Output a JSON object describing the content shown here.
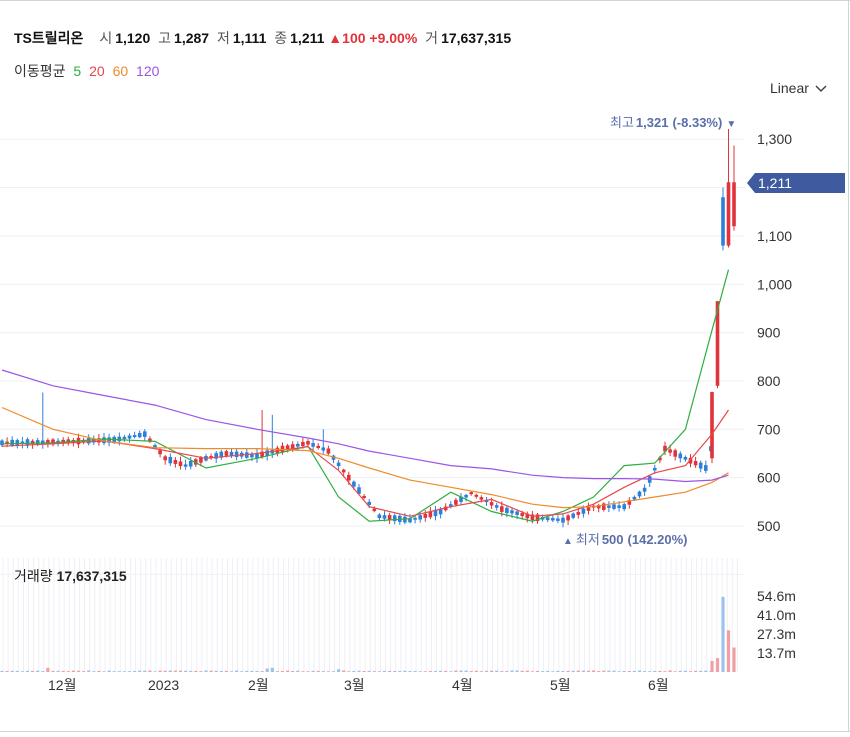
{
  "stock": {
    "name": "TS트릴리온",
    "open_label": "시",
    "open": "1,120",
    "high_label": "고",
    "high": "1,287",
    "low_label": "저",
    "low": "1,111",
    "close_label": "종",
    "close": "1,211",
    "change_arrow": "▲",
    "change": "100",
    "change_pct": "+9.00%",
    "volume_label": "거",
    "volume": "17,637,315"
  },
  "moving_average": {
    "label": "이동평균",
    "periods": [
      {
        "period": "5",
        "color": "#2fae3e"
      },
      {
        "period": "20",
        "color": "#e8474c"
      },
      {
        "period": "60",
        "color": "#f08a2a"
      },
      {
        "period": "120",
        "color": "#9a55e6"
      }
    ]
  },
  "scale_selector": {
    "value": "Linear",
    "icon": "chevron-down-icon"
  },
  "annotations": {
    "high": {
      "label": "최고",
      "value": "1,321",
      "pct": "(-8.33%)",
      "arrow": "▼"
    },
    "low": {
      "arrow": "▲",
      "label": "최저",
      "value": "500",
      "pct": "(142.20%)"
    },
    "current_price": "1,211"
  },
  "volume_panel": {
    "label": "거래량",
    "value": "17,637,315"
  },
  "colors": {
    "up": "#e0333a",
    "down": "#2d7fd9",
    "annotation": "#5a6ea8",
    "current_tag": "#3f5a9e"
  },
  "chart_data": {
    "type": "candlestick",
    "y_ticks": [
      "1,300",
      "1,100",
      "1,000",
      "900",
      "800",
      "700",
      "600",
      "500"
    ],
    "y_tick_values": [
      1300,
      1100,
      1000,
      900,
      800,
      700,
      600,
      500
    ],
    "extra_gridlines": [
      1200
    ],
    "ylim": [
      500,
      1321
    ],
    "x_labels": [
      "12월",
      "2023",
      "2월",
      "3월",
      "4월",
      "5월",
      "6월"
    ],
    "volume_ticks": [
      "54.6m",
      "41.0m",
      "27.3m",
      "13.7m"
    ],
    "volume_tick_values": [
      54.6,
      41.0,
      27.3,
      13.7
    ],
    "moving_averages": {
      "ma5": [
        [
          0,
          670
        ],
        [
          10,
          672
        ],
        [
          20,
          680
        ],
        [
          30,
          675
        ],
        [
          40,
          620
        ],
        [
          50,
          640
        ],
        [
          60,
          665
        ],
        [
          66,
          560
        ],
        [
          72,
          510
        ],
        [
          80,
          515
        ],
        [
          88,
          570
        ],
        [
          96,
          530
        ],
        [
          104,
          510
        ],
        [
          110,
          530
        ],
        [
          116,
          560
        ],
        [
          122,
          625
        ],
        [
          128,
          630
        ],
        [
          134,
          700
        ],
        [
          140,
          905
        ],
        [
          143,
          1030
        ]
      ],
      "ma20": [
        [
          0,
          665
        ],
        [
          10,
          670
        ],
        [
          20,
          676
        ],
        [
          30,
          660
        ],
        [
          40,
          640
        ],
        [
          50,
          650
        ],
        [
          60,
          664
        ],
        [
          66,
          615
        ],
        [
          72,
          540
        ],
        [
          80,
          520
        ],
        [
          88,
          540
        ],
        [
          96,
          555
        ],
        [
          104,
          520
        ],
        [
          110,
          525
        ],
        [
          116,
          545
        ],
        [
          122,
          580
        ],
        [
          128,
          610
        ],
        [
          134,
          625
        ],
        [
          140,
          690
        ],
        [
          143,
          740
        ]
      ],
      "ma60": [
        [
          0,
          745
        ],
        [
          10,
          700
        ],
        [
          20,
          676
        ],
        [
          30,
          662
        ],
        [
          40,
          660
        ],
        [
          50,
          660
        ],
        [
          60,
          656
        ],
        [
          66,
          640
        ],
        [
          72,
          620
        ],
        [
          80,
          595
        ],
        [
          88,
          580
        ],
        [
          96,
          565
        ],
        [
          104,
          545
        ],
        [
          110,
          538
        ],
        [
          116,
          540
        ],
        [
          122,
          550
        ],
        [
          128,
          560
        ],
        [
          134,
          570
        ],
        [
          140,
          590
        ],
        [
          143,
          610
        ]
      ],
      "ma120": [
        [
          0,
          830
        ],
        [
          10,
          790
        ],
        [
          20,
          770
        ],
        [
          30,
          750
        ],
        [
          40,
          720
        ],
        [
          50,
          700
        ],
        [
          60,
          682
        ],
        [
          66,
          670
        ],
        [
          72,
          655
        ],
        [
          80,
          640
        ],
        [
          88,
          625
        ],
        [
          96,
          618
        ],
        [
          104,
          605
        ],
        [
          110,
          600
        ],
        [
          116,
          598
        ],
        [
          122,
          598
        ],
        [
          128,
          597
        ],
        [
          134,
          592
        ],
        [
          140,
          595
        ],
        [
          143,
          605
        ]
      ]
    }
  }
}
